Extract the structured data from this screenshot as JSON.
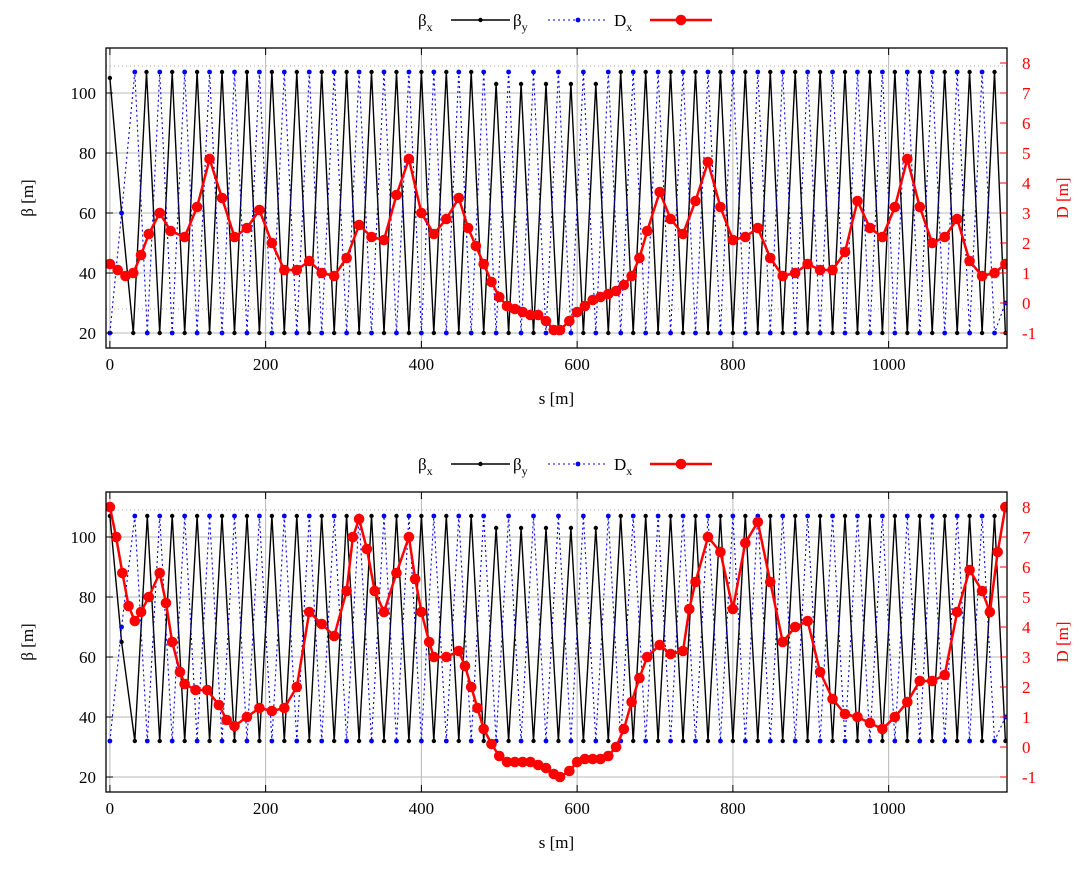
{
  "colors": {
    "beta_x": "#000000",
    "beta_y": "#0000ee",
    "dispersion": "#ff0000",
    "grid": "#b8b8b8",
    "ref_dotted": "#aaaaaa"
  },
  "chart_data": [
    {
      "type": "line",
      "title": "",
      "xlabel": "s [m]",
      "ylabel": "β [m]",
      "y2label": "D [m]",
      "xlim": [
        -5,
        1152
      ],
      "ylim": [
        15,
        115
      ],
      "y2lim": [
        -1.5,
        8.5
      ],
      "xticks": [
        "0",
        "200",
        "400",
        "600",
        "800",
        "1000"
      ],
      "yticks": [
        "20",
        "40",
        "60",
        "80",
        "100"
      ],
      "y2ticks": [
        "-1",
        "0",
        "1",
        "2",
        "3",
        "4",
        "5",
        "6",
        "7",
        "8"
      ],
      "grid": true,
      "legend_position": "top",
      "legend": [
        {
          "base": "β",
          "sub": "x"
        },
        {
          "base": "β",
          "sub": "y"
        },
        {
          "base": "D",
          "sub": "x"
        }
      ],
      "series": [
        {
          "key": "beta_x",
          "axis": "y",
          "style": "solid",
          "x": [
            0,
            15,
            30,
            47,
            64,
            80,
            96,
            112,
            128,
            144,
            160,
            176,
            192,
            208,
            224,
            240,
            256,
            272,
            288,
            304,
            320,
            336,
            352,
            368,
            384,
            400,
            416,
            432,
            448,
            464,
            480,
            496,
            512,
            528,
            544,
            560,
            576,
            592,
            608,
            624,
            640,
            656,
            672,
            688,
            704,
            720,
            736,
            752,
            768,
            784,
            800,
            816,
            832,
            848,
            864,
            880,
            896,
            912,
            928,
            944,
            960,
            976,
            992,
            1008,
            1024,
            1040,
            1056,
            1072,
            1088,
            1104,
            1120,
            1136,
            1150
          ],
          "y": [
            105,
            60,
            20,
            107,
            20,
            107,
            20,
            107,
            20,
            107,
            20,
            107,
            20,
            107,
            20,
            107,
            20,
            107,
            20,
            107,
            20,
            107,
            20,
            107,
            20,
            107,
            20,
            107,
            20,
            107,
            20,
            103,
            20,
            103,
            20,
            103,
            20,
            103,
            20,
            103,
            20,
            107,
            20,
            107,
            20,
            107,
            20,
            107,
            20,
            107,
            20,
            107,
            20,
            107,
            20,
            107,
            20,
            107,
            20,
            107,
            20,
            107,
            20,
            107,
            20,
            107,
            20,
            107,
            20,
            107,
            20,
            107,
            20
          ]
        },
        {
          "key": "beta_y",
          "axis": "y",
          "style": "dotted",
          "x": [
            0,
            15,
            32,
            48,
            64,
            80,
            96,
            112,
            128,
            144,
            160,
            176,
            192,
            208,
            224,
            240,
            256,
            272,
            288,
            304,
            320,
            336,
            352,
            368,
            384,
            400,
            416,
            432,
            448,
            464,
            480,
            496,
            512,
            528,
            544,
            560,
            576,
            592,
            608,
            624,
            640,
            656,
            672,
            688,
            704,
            720,
            736,
            752,
            768,
            784,
            800,
            816,
            832,
            848,
            864,
            880,
            896,
            912,
            928,
            944,
            960,
            976,
            992,
            1008,
            1024,
            1040,
            1056,
            1072,
            1088,
            1104,
            1120,
            1136,
            1150
          ],
          "y": [
            20,
            60,
            107,
            20,
            107,
            20,
            107,
            20,
            107,
            20,
            107,
            20,
            107,
            20,
            107,
            20,
            107,
            20,
            107,
            20,
            107,
            20,
            107,
            20,
            107,
            20,
            107,
            20,
            107,
            20,
            107,
            20,
            107,
            20,
            107,
            20,
            107,
            20,
            107,
            20,
            107,
            20,
            107,
            20,
            107,
            20,
            107,
            20,
            107,
            20,
            107,
            20,
            107,
            20,
            107,
            20,
            107,
            20,
            107,
            20,
            107,
            20,
            107,
            20,
            107,
            20,
            107,
            20,
            107,
            20,
            107,
            20,
            30
          ]
        },
        {
          "key": "dispersion",
          "axis": "y2",
          "style": "markers",
          "x": [
            0,
            10,
            20,
            30,
            40,
            50,
            64,
            78,
            96,
            112,
            128,
            144,
            160,
            176,
            192,
            208,
            224,
            240,
            256,
            272,
            288,
            304,
            320,
            336,
            352,
            368,
            384,
            400,
            416,
            432,
            448,
            460,
            470,
            480,
            490,
            500,
            510,
            520,
            530,
            540,
            550,
            560,
            570,
            578,
            590,
            600,
            610,
            620,
            630,
            640,
            650,
            660,
            670,
            680,
            690,
            706,
            720,
            736,
            752,
            768,
            784,
            800,
            816,
            832,
            848,
            864,
            880,
            896,
            912,
            928,
            944,
            960,
            976,
            992,
            1008,
            1024,
            1040,
            1056,
            1072,
            1088,
            1104,
            1120,
            1136,
            1150
          ],
          "y": [
            1.3,
            1.1,
            0.9,
            1.0,
            1.6,
            2.3,
            3.0,
            2.4,
            2.2,
            3.2,
            4.8,
            3.5,
            2.2,
            2.5,
            3.1,
            2.0,
            1.1,
            1.1,
            1.4,
            1.0,
            0.9,
            1.5,
            2.6,
            2.2,
            2.1,
            3.6,
            4.8,
            3.0,
            2.3,
            2.8,
            3.5,
            2.5,
            1.9,
            1.3,
            0.7,
            0.2,
            -0.1,
            -0.2,
            -0.3,
            -0.4,
            -0.4,
            -0.6,
            -0.9,
            -0.9,
            -0.6,
            -0.3,
            -0.1,
            0.1,
            0.2,
            0.3,
            0.4,
            0.6,
            0.9,
            1.5,
            2.4,
            3.7,
            2.8,
            2.3,
            3.4,
            4.7,
            3.2,
            2.1,
            2.2,
            2.5,
            1.5,
            0.9,
            1.0,
            1.3,
            1.1,
            1.1,
            1.7,
            3.4,
            2.5,
            2.2,
            3.2,
            4.8,
            3.2,
            2.0,
            2.2,
            2.8,
            1.4,
            0.9,
            1.0,
            1.3
          ]
        }
      ]
    },
    {
      "type": "line",
      "title": "",
      "xlabel": "s [m]",
      "ylabel": "β [m]",
      "y2label": "D [m]",
      "xlim": [
        -5,
        1152
      ],
      "ylim": [
        15,
        115
      ],
      "y2lim": [
        -1.5,
        8.5
      ],
      "xticks": [
        "0",
        "200",
        "400",
        "600",
        "800",
        "1000"
      ],
      "yticks": [
        "20",
        "40",
        "60",
        "80",
        "100"
      ],
      "y2ticks": [
        "-1",
        "0",
        "1",
        "2",
        "3",
        "4",
        "5",
        "6",
        "7",
        "8"
      ],
      "grid": true,
      "legend_position": "top",
      "legend": [
        {
          "base": "β",
          "sub": "x"
        },
        {
          "base": "β",
          "sub": "y"
        },
        {
          "base": "D",
          "sub": "x"
        }
      ],
      "series": [
        {
          "key": "beta_x",
          "axis": "y",
          "style": "solid",
          "x": [
            0,
            15,
            32,
            48,
            64,
            80,
            96,
            112,
            128,
            144,
            160,
            176,
            192,
            208,
            224,
            240,
            256,
            272,
            288,
            304,
            320,
            336,
            352,
            368,
            384,
            400,
            416,
            432,
            448,
            464,
            480,
            496,
            512,
            528,
            544,
            560,
            576,
            592,
            608,
            624,
            640,
            656,
            672,
            688,
            704,
            720,
            736,
            752,
            768,
            784,
            800,
            816,
            832,
            848,
            864,
            880,
            896,
            912,
            928,
            944,
            960,
            976,
            992,
            1008,
            1024,
            1040,
            1056,
            1072,
            1088,
            1104,
            1120,
            1136,
            1150
          ],
          "y": [
            107,
            65,
            32,
            107,
            32,
            107,
            32,
            107,
            32,
            107,
            32,
            107,
            32,
            107,
            32,
            107,
            32,
            107,
            32,
            107,
            32,
            107,
            32,
            107,
            32,
            107,
            32,
            107,
            32,
            107,
            32,
            103,
            32,
            103,
            32,
            103,
            32,
            103,
            32,
            103,
            32,
            107,
            32,
            107,
            32,
            107,
            32,
            107,
            32,
            107,
            32,
            107,
            32,
            107,
            32,
            107,
            32,
            107,
            32,
            107,
            32,
            107,
            32,
            107,
            32,
            107,
            32,
            107,
            32,
            107,
            32,
            107,
            32
          ]
        },
        {
          "key": "beta_y",
          "axis": "y",
          "style": "dotted",
          "x": [
            0,
            15,
            32,
            48,
            64,
            80,
            96,
            112,
            128,
            144,
            160,
            176,
            192,
            208,
            224,
            240,
            256,
            272,
            288,
            304,
            320,
            336,
            352,
            368,
            384,
            400,
            416,
            432,
            448,
            464,
            480,
            496,
            512,
            528,
            544,
            560,
            576,
            592,
            608,
            624,
            640,
            656,
            672,
            688,
            704,
            720,
            736,
            752,
            768,
            784,
            800,
            816,
            832,
            848,
            864,
            880,
            896,
            912,
            928,
            944,
            960,
            976,
            992,
            1008,
            1024,
            1040,
            1056,
            1072,
            1088,
            1104,
            1120,
            1136,
            1150
          ],
          "y": [
            32,
            70,
            107,
            32,
            107,
            32,
            107,
            32,
            107,
            32,
            107,
            32,
            107,
            32,
            107,
            32,
            107,
            32,
            107,
            32,
            107,
            32,
            107,
            32,
            107,
            32,
            107,
            32,
            107,
            32,
            107,
            32,
            107,
            32,
            107,
            32,
            107,
            32,
            107,
            32,
            107,
            32,
            107,
            32,
            107,
            32,
            107,
            32,
            107,
            32,
            107,
            32,
            107,
            32,
            107,
            32,
            107,
            32,
            107,
            32,
            107,
            32,
            107,
            32,
            107,
            32,
            107,
            32,
            107,
            32,
            107,
            32,
            40
          ]
        },
        {
          "key": "dispersion",
          "axis": "y2",
          "style": "markers",
          "x": [
            0,
            8,
            16,
            24,
            32,
            40,
            50,
            64,
            72,
            80,
            90,
            96,
            110,
            125,
            140,
            150,
            160,
            176,
            192,
            208,
            224,
            240,
            256,
            272,
            288,
            304,
            312,
            320,
            330,
            340,
            352,
            368,
            384,
            392,
            400,
            410,
            416,
            432,
            448,
            456,
            464,
            472,
            480,
            490,
            500,
            510,
            520,
            530,
            540,
            550,
            560,
            570,
            578,
            590,
            600,
            610,
            620,
            630,
            640,
            650,
            660,
            670,
            680,
            690,
            706,
            720,
            736,
            744,
            752,
            768,
            784,
            800,
            816,
            832,
            848,
            864,
            880,
            896,
            912,
            928,
            944,
            960,
            976,
            992,
            1008,
            1024,
            1040,
            1056,
            1072,
            1088,
            1104,
            1120,
            1130,
            1140,
            1150
          ],
          "y": [
            8.0,
            7.0,
            5.8,
            4.7,
            4.2,
            4.5,
            5.0,
            5.8,
            4.8,
            3.5,
            2.5,
            2.1,
            1.9,
            1.9,
            1.4,
            0.9,
            0.7,
            1.0,
            1.3,
            1.2,
            1.3,
            2.0,
            4.5,
            4.1,
            3.7,
            5.2,
            7.0,
            7.6,
            6.6,
            5.2,
            4.5,
            5.8,
            7.0,
            5.6,
            4.5,
            3.5,
            3.0,
            3.0,
            3.2,
            2.7,
            2.0,
            1.3,
            0.6,
            0.1,
            -0.3,
            -0.5,
            -0.5,
            -0.5,
            -0.5,
            -0.6,
            -0.7,
            -0.9,
            -1.0,
            -0.8,
            -0.5,
            -0.4,
            -0.4,
            -0.4,
            -0.3,
            0.0,
            0.6,
            1.5,
            2.3,
            3.0,
            3.4,
            3.1,
            3.2,
            4.6,
            5.5,
            7.0,
            6.5,
            4.6,
            6.8,
            7.5,
            5.5,
            3.5,
            4.0,
            4.2,
            2.5,
            1.6,
            1.1,
            1.0,
            0.8,
            0.6,
            1.0,
            1.5,
            2.2,
            2.2,
            2.4,
            4.5,
            5.9,
            5.2,
            4.5,
            6.5,
            8.0
          ]
        }
      ]
    }
  ]
}
